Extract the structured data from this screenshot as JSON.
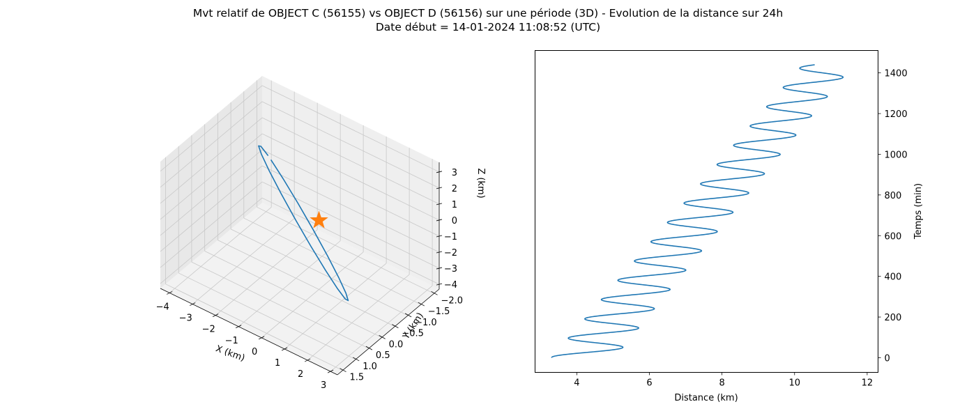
{
  "title": {
    "line1": "Mvt relatif de OBJECT C (56155) vs OBJECT D (56156) sur une période (3D) - Evolution de la distance sur 24h",
    "line2": "Date début = 14-01-2024 11:08:52 (UTC)"
  },
  "colors": {
    "series": "#1f77b4",
    "marker": "#ff7f0e",
    "pane": "#f2f2f2",
    "grid": "#c8c8c8"
  },
  "chart_data": [
    {
      "type": "line3d",
      "xlabel": "X (km)",
      "ylabel": "Y (km)",
      "zlabel": "Z (km)",
      "xticks": [
        "−4",
        "−3",
        "−2",
        "−1",
        "0",
        "1",
        "2",
        "3"
      ],
      "yticks": [
        "−2.0",
        "−1.5",
        "−1.0",
        "−0.5",
        "0.0",
        "0.5",
        "1.0",
        "1.5"
      ],
      "zticks": [
        "−4",
        "−3",
        "−2",
        "−1",
        "0",
        "1",
        "2",
        "3"
      ],
      "xlim": [
        -4.4,
        3.3
      ],
      "ylim": [
        -2.2,
        1.7
      ],
      "zlim": [
        -4.3,
        3.6
      ],
      "marker": {
        "shape": "star",
        "x": 0,
        "y": 0,
        "z": 0
      },
      "orbit": {
        "center": [
          -0.45,
          -0.2,
          -0.2
        ],
        "semi_axis_u": [
          3.5,
          -1.6,
          0.8
        ],
        "semi_axis_v": [
          -0.3,
          -0.6,
          3.6
        ],
        "points": 19
      }
    },
    {
      "type": "line",
      "xlabel": "Distance (km)",
      "ylabel": "Temps (min)",
      "xlim": [
        2.85,
        12.3
      ],
      "ylim": [
        -72,
        1510
      ],
      "xticks": [
        "4",
        "6",
        "8",
        "10",
        "12"
      ],
      "yticks": [
        "0",
        "200",
        "400",
        "600",
        "800",
        "1000",
        "1200",
        "1400"
      ],
      "yaxis_position": "right",
      "series": [
        {
          "model": "distance = mean + amplitude * cos(2*pi*(t - t_peak)/period)",
          "mean_start": 4.17,
          "mean_end": 10.92,
          "amplitude_start": 0.87,
          "amplitude_end": 0.7,
          "period_min": 94.8,
          "t_peak_min": 50,
          "t_start": 0,
          "t_end": 1440
        }
      ]
    }
  ]
}
